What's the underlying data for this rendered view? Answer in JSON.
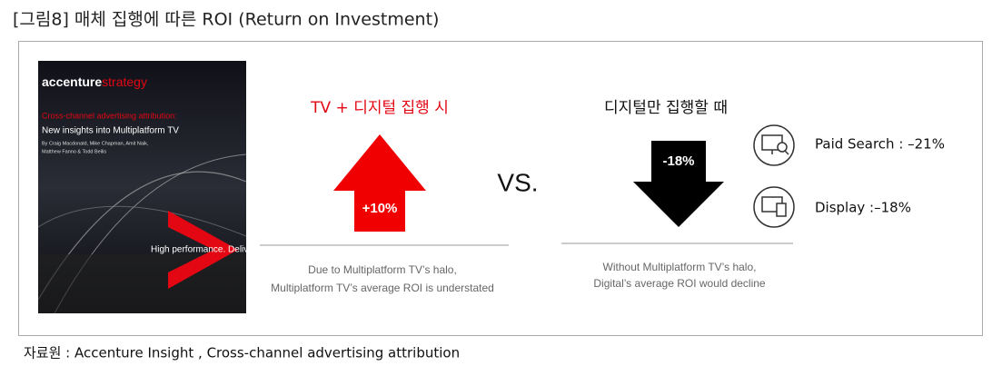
{
  "header": {
    "title": "[그림8] 매체 집행에 따른 ROI (Return on Investment)"
  },
  "cover": {
    "brand": "accenture",
    "brand_suffix": "strategy",
    "kicker": "Cross-channel advertising attribution:",
    "headline": "New insights into Multiplatform TV",
    "authors": [
      "By Craig Macdonald, Mike Chapman, Amit Naik,",
      "Matthew Fanno & Todd Beilis"
    ],
    "tagline": "High performance. Delive"
  },
  "left_panel": {
    "heading": "TV + 디지털 집행 시",
    "arrow_label": "+10%",
    "caption": [
      "Due to Multiplatform TV’s halo,",
      "Multiplatform TV’s average ROI is understated"
    ]
  },
  "versus": "VS.",
  "right_panel": {
    "heading": "디지털만 집행할 때",
    "arrow_label": "-18%",
    "caption": [
      "Without Multiplatform TV’s halo,",
      "Digital’s average ROI would decline"
    ],
    "channels": [
      {
        "label": "Paid Search : –21%"
      },
      {
        "label": "Display :–18%"
      }
    ]
  },
  "footer": {
    "source": "자료원 : Accenture Insight , Cross-channel advertising attribution"
  }
}
